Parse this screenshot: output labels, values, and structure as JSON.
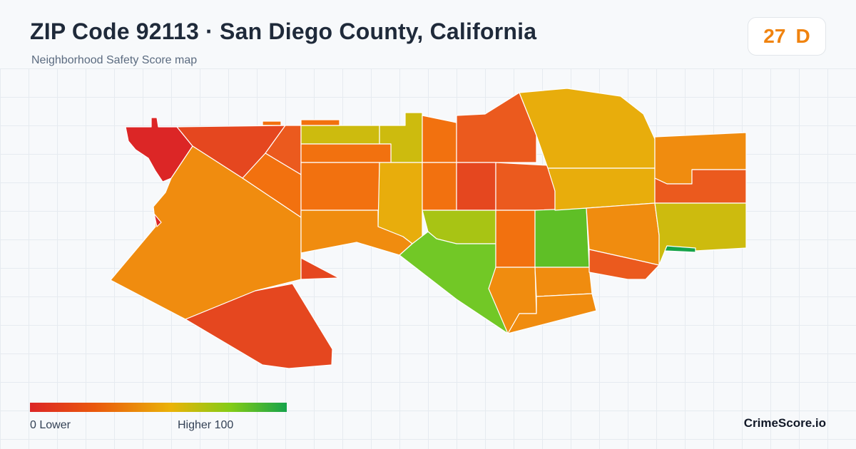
{
  "header": {
    "title": "ZIP Code 92113 · San Diego County, California",
    "subtitle": "Neighborhood Safety Score map"
  },
  "score": {
    "value": "27",
    "grade": "D",
    "color": "#f0830f"
  },
  "legend": {
    "low_label": "0  Lower",
    "high_label": "Higher  100",
    "colors": [
      "#dc2626",
      "#ea580c",
      "#eab308",
      "#84cc16",
      "#16a34a"
    ]
  },
  "brand": "CrimeScore.io",
  "map": {
    "region_colors": {
      "red": "#dc2626",
      "red_orange": "#e5471f",
      "orange_red": "#eb5a1e",
      "orange": "#f2710f",
      "amber": "#f08c0f",
      "gold": "#e8ad0c",
      "olive": "#cdbb0e",
      "yellow_green": "#a8c414",
      "green": "#72c826",
      "bright_green": "#5fbf26",
      "teal_green": "#16a34a"
    }
  }
}
